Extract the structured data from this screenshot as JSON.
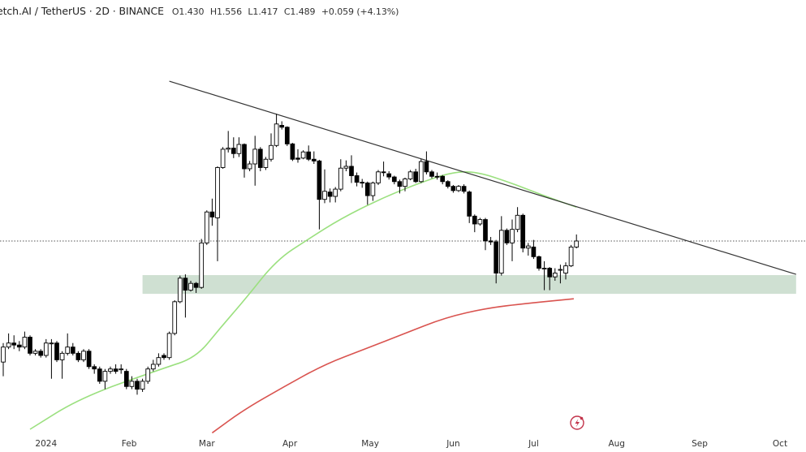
{
  "header": {
    "symbol": "Fetch.AI / TetherUS",
    "interval": "2D",
    "exchange": "BINANCE",
    "title": "etch.AI / TetherUS · 2D · BINANCE",
    "open": "O1.430",
    "high": "H1.556",
    "low": "L1.417",
    "close": "C1.489",
    "change": "+0.059 (+4.13%)"
  },
  "colors": {
    "bull_body": "#ffffff",
    "bear_body": "#000000",
    "candle_outline": "#000000",
    "ma_fast": "#9be07f",
    "ma_slow": "#d9534f",
    "trendline": "#333333",
    "support_zone": "#cfe0d2",
    "last_price_line": "#555555",
    "alert_icon": "#c2334a"
  },
  "icons": {
    "alert": "lightning-bolt-icon"
  },
  "chart_data": {
    "type": "candlestick",
    "title": "",
    "scale": "log",
    "grid": false,
    "x_ticks": [
      {
        "label": "2024",
        "date": "2024-01-01"
      },
      {
        "label": "Feb",
        "date": "2024-02-01"
      },
      {
        "label": "Mar",
        "date": "2024-03-01"
      },
      {
        "label": "Apr",
        "date": "2024-04-01"
      },
      {
        "label": "May",
        "date": "2024-05-01"
      },
      {
        "label": "Jun",
        "date": "2024-06-01"
      },
      {
        "label": "Jul",
        "date": "2024-07-01"
      },
      {
        "label": "Aug",
        "date": "2024-08-01"
      },
      {
        "label": "Sep",
        "date": "2024-09-01"
      },
      {
        "label": "Oct",
        "date": "2024-10-01"
      }
    ],
    "last_price": 1.489,
    "candles_fields": [
      "date",
      "open",
      "high",
      "low",
      "close"
    ],
    "candles": [
      [
        "2023-12-16",
        0.66,
        0.75,
        0.6,
        0.73
      ],
      [
        "2023-12-18",
        0.73,
        0.8,
        0.72,
        0.75
      ],
      [
        "2023-12-20",
        0.75,
        0.79,
        0.72,
        0.74
      ],
      [
        "2023-12-22",
        0.74,
        0.76,
        0.71,
        0.73
      ],
      [
        "2023-12-24",
        0.73,
        0.81,
        0.72,
        0.78
      ],
      [
        "2023-12-26",
        0.78,
        0.79,
        0.69,
        0.7
      ],
      [
        "2023-12-28",
        0.7,
        0.72,
        0.69,
        0.71
      ],
      [
        "2023-12-30",
        0.71,
        0.72,
        0.68,
        0.69
      ],
      [
        "2024-01-01",
        0.69,
        0.77,
        0.68,
        0.75
      ],
      [
        "2024-01-03",
        0.75,
        0.77,
        0.59,
        0.75
      ],
      [
        "2024-01-05",
        0.75,
        0.76,
        0.66,
        0.67
      ],
      [
        "2024-01-07",
        0.67,
        0.71,
        0.59,
        0.7
      ],
      [
        "2024-01-09",
        0.7,
        0.8,
        0.69,
        0.73
      ],
      [
        "2024-01-11",
        0.73,
        0.75,
        0.69,
        0.7
      ],
      [
        "2024-01-13",
        0.7,
        0.71,
        0.66,
        0.67
      ],
      [
        "2024-01-15",
        0.67,
        0.72,
        0.66,
        0.71
      ],
      [
        "2024-01-17",
        0.71,
        0.72,
        0.63,
        0.64
      ],
      [
        "2024-01-19",
        0.64,
        0.65,
        0.61,
        0.63
      ],
      [
        "2024-01-21",
        0.63,
        0.64,
        0.57,
        0.58
      ],
      [
        "2024-01-23",
        0.58,
        0.63,
        0.55,
        0.62
      ],
      [
        "2024-01-25",
        0.62,
        0.64,
        0.61,
        0.63
      ],
      [
        "2024-01-27",
        0.63,
        0.65,
        0.61,
        0.62
      ],
      [
        "2024-01-29",
        0.63,
        0.65,
        0.61,
        0.63
      ],
      [
        "2024-01-31",
        0.62,
        0.63,
        0.55,
        0.56
      ],
      [
        "2024-02-02",
        0.56,
        0.6,
        0.55,
        0.58
      ],
      [
        "2024-02-04",
        0.58,
        0.59,
        0.53,
        0.55
      ],
      [
        "2024-02-06",
        0.55,
        0.59,
        0.54,
        0.58
      ],
      [
        "2024-02-08",
        0.58,
        0.64,
        0.57,
        0.63
      ],
      [
        "2024-02-10",
        0.63,
        0.67,
        0.62,
        0.65
      ],
      [
        "2024-02-12",
        0.65,
        0.7,
        0.64,
        0.68
      ],
      [
        "2024-02-14",
        0.69,
        0.7,
        0.67,
        0.68
      ],
      [
        "2024-02-16",
        0.68,
        0.81,
        0.67,
        0.8
      ],
      [
        "2024-02-18",
        0.8,
        1.0,
        0.79,
        0.99
      ],
      [
        "2024-02-20",
        0.99,
        1.18,
        0.98,
        1.16
      ],
      [
        "2024-02-22",
        1.16,
        1.19,
        0.89,
        1.07
      ],
      [
        "2024-02-24",
        1.07,
        1.14,
        1.06,
        1.12
      ],
      [
        "2024-02-26",
        1.12,
        1.13,
        1.05,
        1.09
      ],
      [
        "2024-02-28",
        1.09,
        1.51,
        1.08,
        1.47
      ],
      [
        "2024-03-01",
        1.47,
        1.83,
        1.45,
        1.81
      ],
      [
        "2024-03-03",
        1.81,
        1.98,
        1.65,
        1.75
      ],
      [
        "2024-03-05",
        1.74,
        2.46,
        1.3,
        2.44
      ],
      [
        "2024-03-07",
        2.44,
        2.8,
        2.42,
        2.76
      ],
      [
        "2024-03-09",
        2.76,
        3.12,
        2.7,
        2.78
      ],
      [
        "2024-03-11",
        2.78,
        2.99,
        2.6,
        2.68
      ],
      [
        "2024-03-13",
        2.68,
        2.99,
        2.62,
        2.85
      ],
      [
        "2024-03-15",
        2.85,
        2.87,
        2.28,
        2.42
      ],
      [
        "2024-03-17",
        2.42,
        2.55,
        2.38,
        2.5
      ],
      [
        "2024-03-19",
        2.5,
        3.02,
        2.16,
        2.76
      ],
      [
        "2024-03-21",
        2.76,
        2.8,
        2.38,
        2.44
      ],
      [
        "2024-03-23",
        2.44,
        2.62,
        2.4,
        2.58
      ],
      [
        "2024-03-25",
        2.58,
        3.07,
        2.54,
        2.83
      ],
      [
        "2024-03-27",
        2.83,
        3.5,
        2.8,
        3.27
      ],
      [
        "2024-03-29",
        3.24,
        3.33,
        3.15,
        3.2
      ],
      [
        "2024-03-31",
        3.2,
        3.22,
        2.82,
        2.86
      ],
      [
        "2024-04-02",
        2.86,
        2.88,
        2.55,
        2.58
      ],
      [
        "2024-04-04",
        2.6,
        2.76,
        2.52,
        2.58
      ],
      [
        "2024-04-06",
        2.6,
        2.74,
        2.58,
        2.71
      ],
      [
        "2024-04-08",
        2.71,
        2.83,
        2.55,
        2.58
      ],
      [
        "2024-04-10",
        2.58,
        2.72,
        2.5,
        2.55
      ],
      [
        "2024-04-12",
        2.55,
        2.57,
        1.61,
        1.97
      ],
      [
        "2024-04-14",
        1.97,
        2.41,
        1.92,
        2.08
      ],
      [
        "2024-04-16",
        2.07,
        2.12,
        1.93,
        2.01
      ],
      [
        "2024-04-18",
        2.01,
        2.14,
        1.93,
        2.11
      ],
      [
        "2024-04-20",
        2.11,
        2.58,
        2.08,
        2.43
      ],
      [
        "2024-04-22",
        2.43,
        2.56,
        2.38,
        2.46
      ],
      [
        "2024-04-24",
        2.46,
        2.65,
        2.2,
        2.31
      ],
      [
        "2024-04-26",
        2.31,
        2.36,
        2.15,
        2.21
      ],
      [
        "2024-04-28",
        2.21,
        2.26,
        2.13,
        2.2
      ],
      [
        "2024-04-30",
        2.2,
        2.22,
        1.9,
        2.02
      ],
      [
        "2024-05-02",
        2.02,
        2.22,
        1.95,
        2.2
      ],
      [
        "2024-05-04",
        2.2,
        2.4,
        2.17,
        2.37
      ],
      [
        "2024-05-06",
        2.37,
        2.54,
        2.3,
        2.36
      ],
      [
        "2024-05-08",
        2.34,
        2.38,
        2.25,
        2.29
      ],
      [
        "2024-05-10",
        2.29,
        2.31,
        2.18,
        2.22
      ],
      [
        "2024-05-12",
        2.22,
        2.25,
        2.05,
        2.15
      ],
      [
        "2024-05-14",
        2.15,
        2.28,
        2.08,
        2.26
      ],
      [
        "2024-05-16",
        2.26,
        2.4,
        2.24,
        2.37
      ],
      [
        "2024-05-18",
        2.37,
        2.42,
        2.2,
        2.22
      ],
      [
        "2024-05-20",
        2.22,
        2.58,
        2.2,
        2.54
      ],
      [
        "2024-05-22",
        2.54,
        2.72,
        2.33,
        2.37
      ],
      [
        "2024-05-24",
        2.37,
        2.4,
        2.27,
        2.3
      ],
      [
        "2024-05-26",
        2.3,
        2.36,
        2.25,
        2.29
      ],
      [
        "2024-05-28",
        2.3,
        2.32,
        2.18,
        2.22
      ],
      [
        "2024-05-30",
        2.22,
        2.24,
        2.12,
        2.15
      ],
      [
        "2024-06-01",
        2.15,
        2.17,
        2.06,
        2.09
      ],
      [
        "2024-06-03",
        2.09,
        2.17,
        2.07,
        2.15
      ],
      [
        "2024-06-05",
        2.15,
        2.18,
        2.05,
        2.08
      ],
      [
        "2024-06-07",
        2.07,
        2.09,
        1.68,
        1.76
      ],
      [
        "2024-06-09",
        1.76,
        1.78,
        1.58,
        1.67
      ],
      [
        "2024-06-11",
        1.67,
        1.74,
        1.65,
        1.72
      ],
      [
        "2024-06-13",
        1.72,
        1.74,
        1.4,
        1.49
      ],
      [
        "2024-06-15",
        1.49,
        1.53,
        1.45,
        1.48
      ],
      [
        "2024-06-17",
        1.48,
        1.5,
        1.12,
        1.2
      ],
      [
        "2024-06-19",
        1.2,
        1.76,
        1.18,
        1.6
      ],
      [
        "2024-06-21",
        1.6,
        1.62,
        1.45,
        1.47
      ],
      [
        "2024-06-23",
        1.47,
        1.72,
        1.3,
        1.61
      ],
      [
        "2024-06-25",
        1.61,
        1.87,
        1.58,
        1.77
      ],
      [
        "2024-06-27",
        1.77,
        1.79,
        1.38,
        1.42
      ],
      [
        "2024-06-29",
        1.42,
        1.47,
        1.35,
        1.44
      ],
      [
        "2024-07-01",
        1.43,
        1.5,
        1.32,
        1.34
      ],
      [
        "2024-07-03",
        1.34,
        1.35,
        1.22,
        1.24
      ],
      [
        "2024-07-05",
        1.24,
        1.3,
        1.07,
        1.24
      ],
      [
        "2024-07-07",
        1.24,
        1.25,
        1.07,
        1.17
      ],
      [
        "2024-07-09",
        1.17,
        1.24,
        1.14,
        1.2
      ],
      [
        "2024-07-11",
        1.23,
        1.27,
        1.12,
        1.23
      ],
      [
        "2024-07-13",
        1.2,
        1.29,
        1.15,
        1.26
      ],
      [
        "2024-07-15",
        1.26,
        1.45,
        1.25,
        1.43
      ],
      [
        "2024-07-17",
        1.43,
        1.556,
        1.417,
        1.489
      ]
    ],
    "moving_averages": [
      {
        "role": "fast",
        "points": [
          [
            "2023-12-26",
            0.42
          ],
          [
            "2024-01-14",
            0.52
          ],
          [
            "2024-02-13",
            0.63
          ],
          [
            "2024-02-26",
            0.68
          ],
          [
            "2024-03-06",
            0.83
          ],
          [
            "2024-03-15",
            1.0
          ],
          [
            "2024-03-27",
            1.31
          ],
          [
            "2024-04-08",
            1.51
          ],
          [
            "2024-04-20",
            1.73
          ],
          [
            "2024-05-05",
            1.98
          ],
          [
            "2024-05-20",
            2.21
          ],
          [
            "2024-06-01",
            2.37
          ],
          [
            "2024-06-10",
            2.37
          ],
          [
            "2024-06-22",
            2.21
          ],
          [
            "2024-07-04",
            2.03
          ],
          [
            "2024-07-17",
            1.87
          ]
        ]
      },
      {
        "role": "slow",
        "points": [
          [
            "2024-03-03",
            0.41
          ],
          [
            "2024-03-15",
            0.48
          ],
          [
            "2024-03-30",
            0.56
          ],
          [
            "2024-04-14",
            0.65
          ],
          [
            "2024-04-29",
            0.72
          ],
          [
            "2024-05-14",
            0.8
          ],
          [
            "2024-05-29",
            0.89
          ],
          [
            "2024-06-14",
            0.95
          ],
          [
            "2024-06-29",
            0.98
          ],
          [
            "2024-07-16",
            1.01
          ]
        ]
      }
    ],
    "trendline": [
      [
        "2024-02-16",
        4.36
      ],
      [
        "2024-10-07",
        1.19
      ]
    ],
    "support_zone": {
      "from": "2024-02-06",
      "to": "2024-10-07",
      "low": 1.044,
      "high": 1.184
    }
  }
}
